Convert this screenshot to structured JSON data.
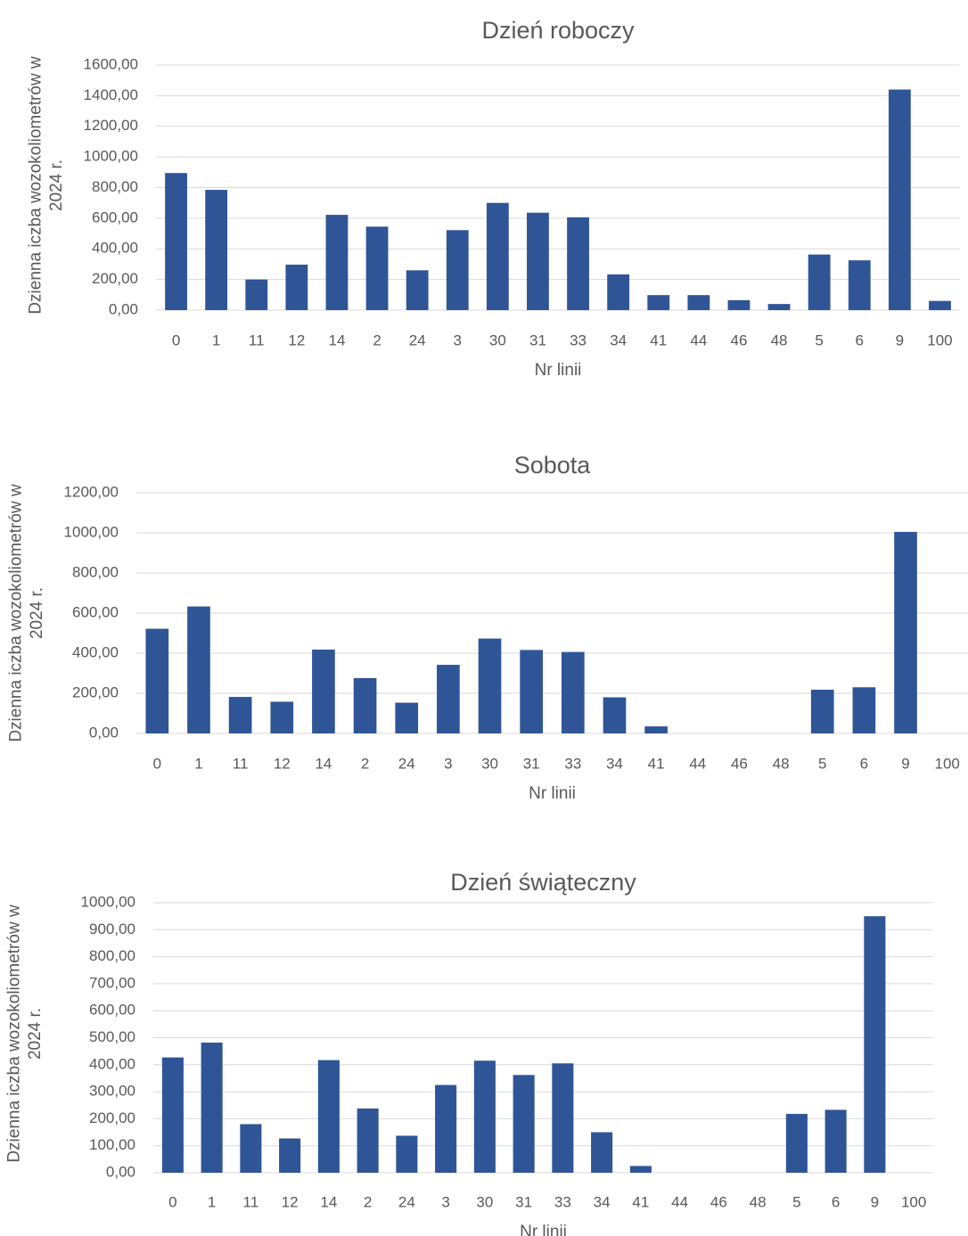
{
  "chart_data": [
    {
      "type": "bar",
      "title": "Dzień roboczy",
      "xlabel": "Nr linii",
      "ylabel": "Dzienna iczba wozokoliometrów w 2024 r.",
      "ylabel_lines": [
        "Dzienna iczba wozokoliometrów w",
        "2024 r."
      ],
      "ylim": [
        0,
        1600
      ],
      "yticks": [
        "0,00",
        "200,00",
        "400,00",
        "600,00",
        "800,00",
        "1000,00",
        "1200,00",
        "1400,00",
        "1600,00"
      ],
      "grid": true,
      "legend": "none",
      "color": "#2f5597",
      "categories": [
        "0",
        "1",
        "11",
        "12",
        "14",
        "2",
        "24",
        "3",
        "30",
        "31",
        "33",
        "34",
        "41",
        "44",
        "46",
        "48",
        "5",
        "6",
        "9",
        "100"
      ],
      "values": [
        895,
        785,
        200,
        297,
        622,
        545,
        260,
        522,
        700,
        636,
        606,
        233,
        98,
        98,
        65,
        40,
        363,
        325,
        1440,
        60
      ]
    },
    {
      "type": "bar",
      "title": "Sobota",
      "xlabel": "Nr linii",
      "ylabel": "Dzienna iczba wozokoliometrów w 2024 r.",
      "ylabel_lines": [
        "Dzienna iczba wozokoliometrów w",
        "2024 r."
      ],
      "ylim": [
        0,
        1200
      ],
      "yticks": [
        "0,00",
        "200,00",
        "400,00",
        "600,00",
        "800,00",
        "1000,00",
        "1200,00"
      ],
      "grid": true,
      "legend": "none",
      "color": "#2f5597",
      "categories": [
        "0",
        "1",
        "11",
        "12",
        "14",
        "2",
        "24",
        "3",
        "30",
        "31",
        "33",
        "34",
        "41",
        "44",
        "46",
        "48",
        "5",
        "6",
        "9",
        "100"
      ],
      "values": [
        522,
        633,
        182,
        158,
        418,
        276,
        153,
        342,
        473,
        416,
        406,
        180,
        35,
        0,
        0,
        0,
        218,
        230,
        1005,
        0
      ]
    },
    {
      "type": "bar",
      "title": "Dzień świąteczny",
      "xlabel": "Nr linii",
      "ylabel": "Dzienna iczba wozokoliometrów w 2024 r.",
      "ylabel_lines": [
        "Dzienna iczba wozokoliometrów w",
        "2024 r."
      ],
      "ylim": [
        0,
        1000
      ],
      "yticks": [
        "0,00",
        "100,00",
        "200,00",
        "300,00",
        "400,00",
        "500,00",
        "600,00",
        "700,00",
        "800,00",
        "900,00",
        "1000,00"
      ],
      "grid": true,
      "legend": "none",
      "color": "#2f5597",
      "categories": [
        "0",
        "1",
        "11",
        "12",
        "14",
        "2",
        "24",
        "3",
        "30",
        "31",
        "33",
        "34",
        "41",
        "44",
        "46",
        "48",
        "5",
        "6",
        "9",
        "100"
      ],
      "values": [
        427,
        482,
        180,
        127,
        417,
        238,
        137,
        325,
        415,
        362,
        405,
        150,
        25,
        0,
        0,
        0,
        218,
        233,
        950,
        0
      ]
    }
  ]
}
